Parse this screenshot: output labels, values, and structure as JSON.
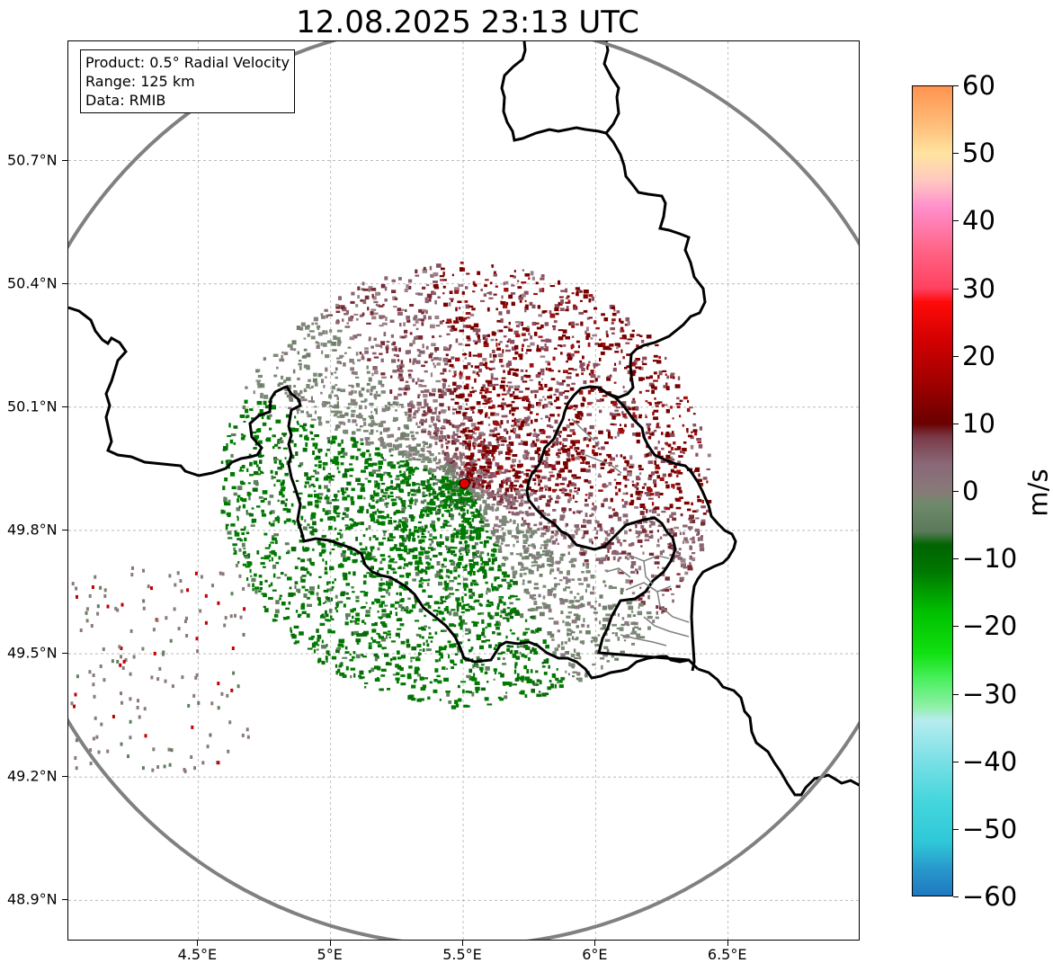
{
  "title": "12.08.2025 23:13 UTC",
  "info": {
    "product": "Product: 0.5° Radial Velocity",
    "range": "Range: 125 km",
    "data": "Data: RMIB"
  },
  "axes": {
    "lon_range": [
      4.01,
      7.0
    ],
    "lat_range": [
      48.8,
      50.99
    ],
    "lat_ticks": [
      {
        "value": 50.7,
        "label": "50.7°N"
      },
      {
        "value": 50.4,
        "label": "50.4°N"
      },
      {
        "value": 50.1,
        "label": "50.1°N"
      },
      {
        "value": 49.8,
        "label": "49.8°N"
      },
      {
        "value": 49.5,
        "label": "49.5°N"
      },
      {
        "value": 49.2,
        "label": "49.2°N"
      },
      {
        "value": 48.9,
        "label": "48.9°N"
      }
    ],
    "lon_ticks": [
      {
        "value": 4.5,
        "label": "4.5°E"
      },
      {
        "value": 5.0,
        "label": "5°E"
      },
      {
        "value": 5.5,
        "label": "5.5°E"
      },
      {
        "value": 6.0,
        "label": "6°E"
      },
      {
        "value": 6.5,
        "label": "6.5°E"
      }
    ],
    "grid": true
  },
  "radar": {
    "site_lon": 5.505,
    "site_lat": 49.914,
    "range_km": 125,
    "site_color": "#e00000"
  },
  "colorbar": {
    "vmin": -60,
    "vmax": 60,
    "unit": "m/s",
    "ticks": [
      60,
      50,
      40,
      30,
      20,
      10,
      0,
      -10,
      -20,
      -30,
      -40,
      -50,
      -60
    ],
    "tick_labels": [
      "60",
      "50",
      "40",
      "30",
      "20",
      "10",
      "0",
      "−10",
      "−20",
      "−30",
      "−40",
      "−50",
      "−60"
    ],
    "stops": [
      {
        "v": -60,
        "c": "#1f78c0"
      },
      {
        "v": -56,
        "c": "#2898cc"
      },
      {
        "v": -52,
        "c": "#2fc8d8"
      },
      {
        "v": -46,
        "c": "#44d6dc"
      },
      {
        "v": -40,
        "c": "#7ae0e6"
      },
      {
        "v": -34,
        "c": "#b7ecef"
      },
      {
        "v": -32,
        "c": "#90f0a8"
      },
      {
        "v": -28,
        "c": "#4cf060"
      },
      {
        "v": -24,
        "c": "#10e010"
      },
      {
        "v": -18,
        "c": "#00c000"
      },
      {
        "v": -12,
        "c": "#007800"
      },
      {
        "v": -8,
        "c": "#006400"
      },
      {
        "v": -6,
        "c": "#5a7a5a"
      },
      {
        "v": -2,
        "c": "#6e8a6a"
      },
      {
        "v": 0,
        "c": "#887a78"
      },
      {
        "v": 4,
        "c": "#8a6878"
      },
      {
        "v": 8,
        "c": "#7a3a48"
      },
      {
        "v": 10,
        "c": "#6a0000"
      },
      {
        "v": 16,
        "c": "#a00000"
      },
      {
        "v": 22,
        "c": "#d00000"
      },
      {
        "v": 28,
        "c": "#ff0a0a"
      },
      {
        "v": 30,
        "c": "#ff4060"
      },
      {
        "v": 36,
        "c": "#ff6688"
      },
      {
        "v": 42,
        "c": "#ff8ecc"
      },
      {
        "v": 46,
        "c": "#ffc8c0"
      },
      {
        "v": 50,
        "c": "#ffe4a0"
      },
      {
        "v": 54,
        "c": "#ffc07c"
      },
      {
        "v": 60,
        "c": "#ff9250"
      }
    ]
  },
  "colors": {
    "border": "#000000",
    "sub_border": "#808080",
    "range_ring": "#808080",
    "grid": "#b0b0b0"
  }
}
